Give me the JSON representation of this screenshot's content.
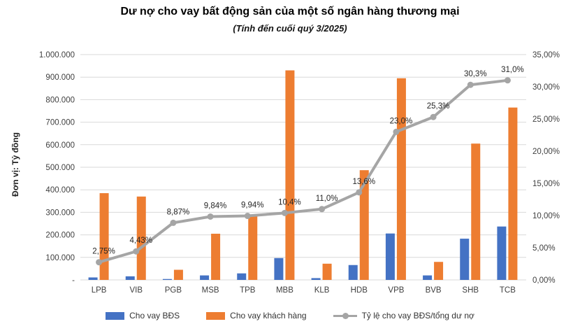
{
  "header": {
    "title": "Dư nợ cho vay bất động sản của một số ngân hàng thương mại",
    "subtitle": "(Tính đến cuối quý 3/2025)"
  },
  "chart_data": {
    "type": "bar+line combo",
    "categories": [
      "LPB",
      "VIB",
      "PGB",
      "MSB",
      "TPB",
      "MBB",
      "KLB",
      "HDB",
      "VPB",
      "BVB",
      "SHB",
      "TCB"
    ],
    "series": [
      {
        "name": "Cho vay BĐS",
        "type": "bar",
        "axis": "left",
        "color": "#4472C4",
        "values": [
          11000,
          16000,
          4000,
          20000,
          29000,
          97000,
          8000,
          66000,
          206000,
          20000,
          183000,
          237000
        ]
      },
      {
        "name": "Cho vay khách hàng",
        "type": "bar",
        "axis": "left",
        "color": "#ED7D31",
        "values": [
          385000,
          370000,
          45000,
          205000,
          290000,
          930000,
          72000,
          487000,
          895000,
          80000,
          605000,
          765000
        ]
      },
      {
        "name": "Tỷ lệ cho vay BĐS/tổng dư nợ",
        "type": "line",
        "axis": "right",
        "color": "#A5A5A5",
        "values": [
          2.75,
          4.43,
          8.87,
          9.84,
          9.94,
          10.4,
          11.0,
          13.6,
          23.0,
          25.3,
          30.3,
          31.0
        ],
        "point_labels": [
          "2,75%",
          "4,43%",
          "8,87%",
          "9,84%",
          "9,94%",
          "10,4%",
          "11,0%",
          "13,6%",
          "23,0%",
          "25,3%",
          "30,3%",
          "31,0%"
        ]
      }
    ],
    "left_axis": {
      "title": "Đơn vị: Tỷ đồng",
      "min": 0,
      "max": 1000000,
      "tick_labels": [
        "1.000.000",
        "900.000",
        "800.000",
        "700.000",
        "600.000",
        "500.000",
        "400.000",
        "300.000",
        "200.000",
        "100.000",
        "-"
      ]
    },
    "right_axis": {
      "min": 0,
      "max": 35,
      "tick_labels": [
        "35,00%",
        "30,00%",
        "25,00%",
        "20,00%",
        "15,00%",
        "10,00%",
        "5,00%",
        "0,00%"
      ]
    },
    "grid": {
      "on": true,
      "color": "#D9D9D9"
    },
    "legend_position": "bottom"
  }
}
